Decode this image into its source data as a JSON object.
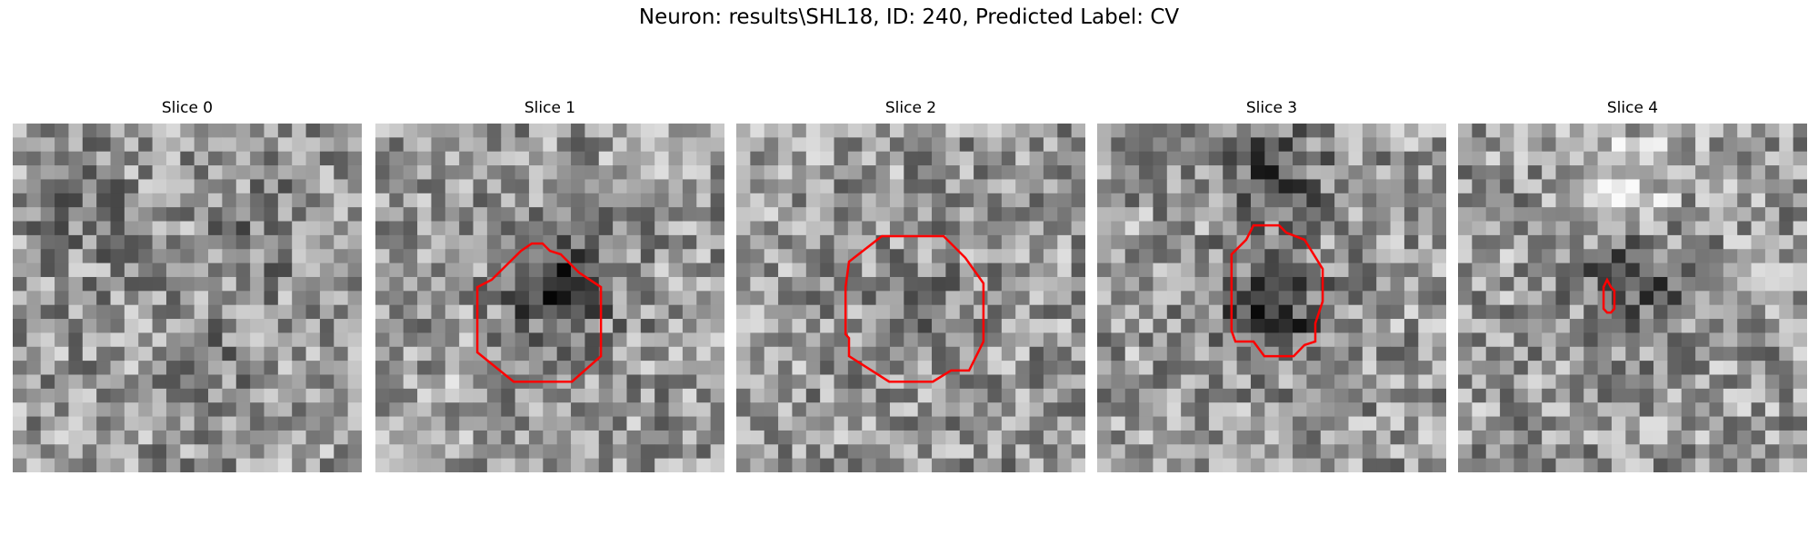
{
  "figure": {
    "suptitle": "Neuron: results\\SHL18, ID: 240, Predicted Label: CV",
    "contour_color": "#ff0000",
    "grid_size": 25
  },
  "panels": [
    {
      "title": "Slice 0",
      "seed": 11,
      "blobs": [
        [
          0.2,
          0.25,
          -0.15
        ],
        [
          0.7,
          0.3,
          -0.12
        ],
        [
          0.6,
          0.7,
          -0.1
        ]
      ],
      "contour": []
    },
    {
      "title": "Slice 1",
      "seed": 23,
      "blobs": [
        [
          0.52,
          0.46,
          -0.45
        ],
        [
          0.2,
          0.75,
          0.05
        ]
      ],
      "contour": [
        [
          0.333,
          0.448
        ],
        [
          0.417,
          0.365
        ],
        [
          0.448,
          0.344
        ],
        [
          0.479,
          0.344
        ],
        [
          0.5,
          0.365
        ],
        [
          0.531,
          0.375
        ],
        [
          0.583,
          0.427
        ],
        [
          0.646,
          0.469
        ],
        [
          0.646,
          0.667
        ],
        [
          0.563,
          0.74
        ],
        [
          0.396,
          0.74
        ],
        [
          0.292,
          0.656
        ],
        [
          0.292,
          0.469
        ]
      ]
    },
    {
      "title": "Slice 2",
      "seed": 37,
      "blobs": [
        [
          0.52,
          0.55,
          -0.4
        ],
        [
          0.52,
          0.55,
          0.25
        ]
      ],
      "contour": [
        [
          0.323,
          0.396
        ],
        [
          0.417,
          0.323
        ],
        [
          0.594,
          0.323
        ],
        [
          0.656,
          0.385
        ],
        [
          0.708,
          0.458
        ],
        [
          0.708,
          0.625
        ],
        [
          0.667,
          0.708
        ],
        [
          0.615,
          0.708
        ],
        [
          0.563,
          0.74
        ],
        [
          0.438,
          0.74
        ],
        [
          0.323,
          0.667
        ],
        [
          0.323,
          0.615
        ],
        [
          0.313,
          0.604
        ],
        [
          0.313,
          0.469
        ]
      ]
    },
    {
      "title": "Slice 3",
      "seed": 49,
      "blobs": [
        [
          0.5,
          0.55,
          -0.4
        ],
        [
          0.5,
          0.15,
          -0.3
        ]
      ],
      "contour": [
        [
          0.385,
          0.375
        ],
        [
          0.427,
          0.333
        ],
        [
          0.448,
          0.292
        ],
        [
          0.521,
          0.292
        ],
        [
          0.542,
          0.313
        ],
        [
          0.594,
          0.333
        ],
        [
          0.646,
          0.417
        ],
        [
          0.646,
          0.51
        ],
        [
          0.625,
          0.573
        ],
        [
          0.625,
          0.625
        ],
        [
          0.594,
          0.635
        ],
        [
          0.563,
          0.667
        ],
        [
          0.479,
          0.667
        ],
        [
          0.448,
          0.625
        ],
        [
          0.396,
          0.625
        ],
        [
          0.385,
          0.594
        ]
      ]
    },
    {
      "title": "Slice 4",
      "seed": 61,
      "blobs": [
        [
          0.5,
          0.45,
          -0.3
        ],
        [
          0.5,
          0.15,
          0.2
        ]
      ],
      "contour": [
        [
          0.417,
          0.469
        ],
        [
          0.427,
          0.448
        ],
        [
          0.438,
          0.469
        ],
        [
          0.448,
          0.479
        ],
        [
          0.448,
          0.531
        ],
        [
          0.438,
          0.542
        ],
        [
          0.427,
          0.542
        ],
        [
          0.417,
          0.531
        ]
      ]
    }
  ]
}
